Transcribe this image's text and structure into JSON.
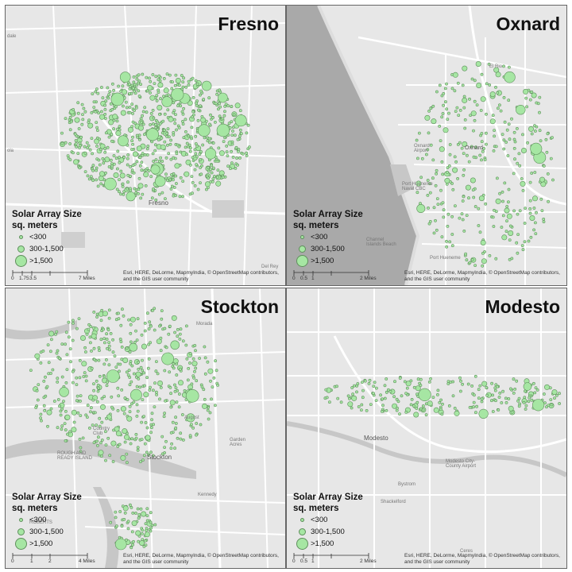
{
  "panels": [
    {
      "city": "Fresno",
      "legend": {
        "title": "Solar Array Size",
        "subtitle": "sq. meters",
        "items": [
          "<300",
          "300-1,500",
          ">1,500"
        ]
      },
      "scale": {
        "labels": [
          "0",
          "1.75",
          "3.5",
          "7 Miles"
        ]
      },
      "attribution": "Esri, HERE, DeLorme, MapmyIndia, © OpenStreetMap contributors, and the GIS user community",
      "places": [
        "Fresno",
        "dale",
        "Del Rey",
        "ola"
      ]
    },
    {
      "city": "Oxnard",
      "legend": {
        "title": "Solar Array Size",
        "subtitle": "sq. meters",
        "items": [
          "<300",
          "300-1,500",
          ">1,500"
        ]
      },
      "scale": {
        "labels": [
          "0",
          "0.5",
          "1",
          "2 Miles"
        ]
      },
      "attribution": "Esri, HERE, DeLorme, MapmyIndia, © OpenStreetMap contributors, and the GIS user community",
      "places": [
        "Oxnard",
        "El Rio",
        "Channel Islands Beach",
        "Port Hueneme Naval CBC",
        "Port Hueneme",
        "Oxnard Airport"
      ]
    },
    {
      "city": "Stockton",
      "legend": {
        "title": "Solar Array Size",
        "subtitle": "sq. meters",
        "items": [
          "<300",
          "300-1,500",
          ">1,500"
        ]
      },
      "scale": {
        "labels": [
          "0",
          "1",
          "2",
          "4 Miles"
        ]
      },
      "attribution": "Esri, HERE, DeLorme, MapmyIndia, © OpenStreetMap contributors, and the GIS user community",
      "places": [
        "Stockton",
        "Country Club",
        "August",
        "Garden Acres",
        "Kennedy",
        "ROUGH AND READY ISLAND",
        "Morada",
        "ROBERTS"
      ]
    },
    {
      "city": "Modesto",
      "legend": {
        "title": "Solar Array Size",
        "subtitle": "sq. meters",
        "items": [
          "<300",
          "300-1,500",
          ">1,500"
        ]
      },
      "scale": {
        "labels": [
          "0",
          "0.5",
          "1",
          "2 Miles"
        ]
      },
      "attribution": "Esri, HERE, DeLorme, MapmyIndia, © OpenStreetMap contributors, and the GIS user community",
      "places": [
        "Modesto",
        "Bystrom",
        "Shackelford",
        "Modesto City-County Airport",
        "Ceres"
      ]
    }
  ],
  "colors": {
    "marker_fill": "#a6e6a3",
    "marker_stroke": "#5f8f5c",
    "map_bg": "#e7e7e7",
    "road": "#ffffff",
    "water": "#c7c7c7",
    "ocean": "#a9a9a9"
  }
}
